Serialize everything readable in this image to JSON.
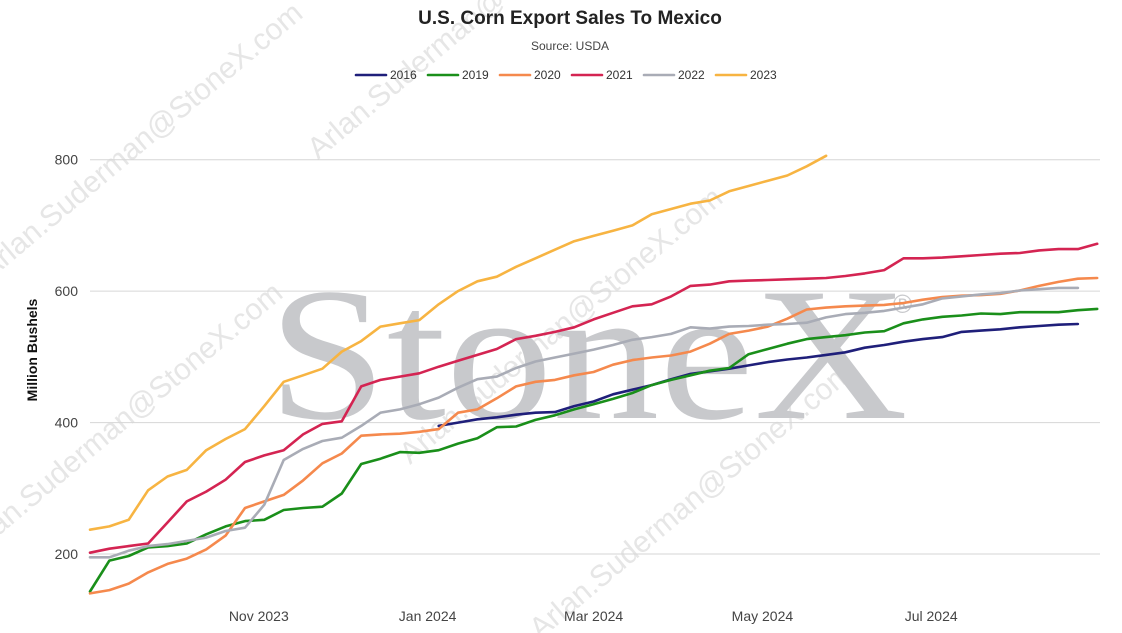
{
  "chart_data": {
    "type": "line",
    "title": "U.S. Corn Export Sales To Mexico",
    "subtitle": "Source: USDA",
    "ylabel": "Million Bushels",
    "xlabel": "",
    "ylim": [
      130,
      830
    ],
    "yticks": [
      200,
      400,
      600,
      800
    ],
    "xlim": [
      "2023-09-01",
      "2024-08-31"
    ],
    "xticks": [
      {
        "label": "Nov 2023",
        "date": "2023-11-01"
      },
      {
        "label": "Jan 2024",
        "date": "2024-01-01"
      },
      {
        "label": "Mar 2024",
        "date": "2024-03-01"
      },
      {
        "label": "May 2024",
        "date": "2024-05-01"
      },
      {
        "label": "Jul 2024",
        "date": "2024-07-01"
      }
    ],
    "grid": true,
    "legend_position": "top",
    "watermark": {
      "logo": "StoneX",
      "registered": "®",
      "text": "Arlan.Suderman@StoneX.com"
    },
    "series": [
      {
        "name": "2016",
        "color": "#1f1f7a",
        "x": [
          "2024-01-05",
          "2024-01-12",
          "2024-01-19",
          "2024-01-26",
          "2024-02-02",
          "2024-02-09",
          "2024-02-16",
          "2024-02-23",
          "2024-03-01",
          "2024-03-08",
          "2024-03-15",
          "2024-03-22",
          "2024-03-29",
          "2024-04-05",
          "2024-04-12",
          "2024-04-19",
          "2024-04-26",
          "2024-05-03",
          "2024-05-10",
          "2024-05-17",
          "2024-05-24",
          "2024-05-31",
          "2024-06-07",
          "2024-06-14",
          "2024-06-21",
          "2024-06-28",
          "2024-07-05",
          "2024-07-12",
          "2024-07-19",
          "2024-07-26",
          "2024-08-02",
          "2024-08-09",
          "2024-08-16",
          "2024-08-23"
        ],
        "y": [
          395,
          400,
          405,
          408,
          412,
          415,
          416,
          425,
          432,
          443,
          450,
          457,
          466,
          474,
          478,
          482,
          487,
          492,
          496,
          499,
          503,
          507,
          514,
          518,
          523,
          527,
          530,
          538,
          540,
          542,
          545,
          547,
          549,
          550
        ]
      },
      {
        "name": "2019",
        "color": "#1a8f1a",
        "x": [
          "2023-09-01",
          "2023-09-08",
          "2023-09-15",
          "2023-09-22",
          "2023-09-29",
          "2023-10-06",
          "2023-10-13",
          "2023-10-20",
          "2023-10-27",
          "2023-11-03",
          "2023-11-10",
          "2023-11-17",
          "2023-11-24",
          "2023-12-01",
          "2023-12-08",
          "2023-12-15",
          "2023-12-22",
          "2023-12-29",
          "2024-01-05",
          "2024-01-12",
          "2024-01-19",
          "2024-01-26",
          "2024-02-02",
          "2024-02-09",
          "2024-02-16",
          "2024-02-23",
          "2024-03-01",
          "2024-03-08",
          "2024-03-15",
          "2024-03-22",
          "2024-03-29",
          "2024-04-05",
          "2024-04-12",
          "2024-04-19",
          "2024-04-26",
          "2024-05-03",
          "2024-05-10",
          "2024-05-17",
          "2024-05-24",
          "2024-05-31",
          "2024-06-07",
          "2024-06-14",
          "2024-06-21",
          "2024-06-28",
          "2024-07-05",
          "2024-07-12",
          "2024-07-19",
          "2024-07-26",
          "2024-08-02",
          "2024-08-09",
          "2024-08-16",
          "2024-08-23",
          "2024-08-30"
        ],
        "y": [
          143,
          190,
          197,
          210,
          212,
          216,
          230,
          242,
          250,
          252,
          267,
          270,
          272,
          292,
          337,
          345,
          355,
          354,
          358,
          368,
          376,
          393,
          394,
          404,
          411,
          420,
          428,
          436,
          445,
          457,
          465,
          472,
          479,
          483,
          504,
          512,
          520,
          527,
          530,
          533,
          537,
          539,
          551,
          557,
          561,
          563,
          566,
          565,
          568,
          568,
          568,
          571,
          573
        ]
      },
      {
        "name": "2020",
        "color": "#f5894d",
        "x": [
          "2023-09-01",
          "2023-09-08",
          "2023-09-15",
          "2023-09-22",
          "2023-09-29",
          "2023-10-06",
          "2023-10-13",
          "2023-10-20",
          "2023-10-27",
          "2023-11-03",
          "2023-11-10",
          "2023-11-17",
          "2023-11-24",
          "2023-12-01",
          "2023-12-08",
          "2023-12-15",
          "2023-12-22",
          "2023-12-29",
          "2024-01-05",
          "2024-01-12",
          "2024-01-19",
          "2024-01-26",
          "2024-02-02",
          "2024-02-09",
          "2024-02-16",
          "2024-02-23",
          "2024-03-01",
          "2024-03-08",
          "2024-03-15",
          "2024-03-22",
          "2024-03-29",
          "2024-04-05",
          "2024-04-12",
          "2024-04-19",
          "2024-04-26",
          "2024-05-03",
          "2024-05-10",
          "2024-05-17",
          "2024-05-24",
          "2024-05-31",
          "2024-06-07",
          "2024-06-14",
          "2024-06-21",
          "2024-06-28",
          "2024-07-05",
          "2024-07-12",
          "2024-07-19",
          "2024-07-26",
          "2024-08-02",
          "2024-08-09",
          "2024-08-16",
          "2024-08-23",
          "2024-08-30"
        ],
        "y": [
          140,
          145,
          155,
          172,
          185,
          193,
          207,
          228,
          270,
          280,
          290,
          312,
          338,
          353,
          380,
          382,
          383,
          386,
          390,
          415,
          420,
          437,
          455,
          462,
          465,
          472,
          477,
          488,
          495,
          499,
          502,
          508,
          520,
          535,
          540,
          546,
          558,
          572,
          575,
          577,
          578,
          579,
          582,
          587,
          591,
          593,
          594,
          596,
          601,
          608,
          614,
          619,
          620
        ]
      },
      {
        "name": "2021",
        "color": "#d42452",
        "x": [
          "2023-09-01",
          "2023-09-08",
          "2023-09-15",
          "2023-09-22",
          "2023-09-29",
          "2023-10-06",
          "2023-10-13",
          "2023-10-20",
          "2023-10-27",
          "2023-11-03",
          "2023-11-10",
          "2023-11-17",
          "2023-11-24",
          "2023-12-01",
          "2023-12-08",
          "2023-12-15",
          "2023-12-22",
          "2023-12-29",
          "2024-01-05",
          "2024-01-12",
          "2024-01-19",
          "2024-01-26",
          "2024-02-02",
          "2024-02-09",
          "2024-02-16",
          "2024-02-23",
          "2024-03-01",
          "2024-03-08",
          "2024-03-15",
          "2024-03-22",
          "2024-03-29",
          "2024-04-05",
          "2024-04-12",
          "2024-04-19",
          "2024-04-26",
          "2024-05-03",
          "2024-05-10",
          "2024-05-17",
          "2024-05-24",
          "2024-05-31",
          "2024-06-07",
          "2024-06-14",
          "2024-06-21",
          "2024-06-28",
          "2024-07-05",
          "2024-07-12",
          "2024-07-19",
          "2024-07-26",
          "2024-08-02",
          "2024-08-09",
          "2024-08-16",
          "2024-08-23",
          "2024-08-30"
        ],
        "y": [
          202,
          208,
          212,
          216,
          248,
          280,
          295,
          313,
          340,
          350,
          358,
          382,
          398,
          402,
          455,
          465,
          470,
          475,
          485,
          494,
          503,
          512,
          527,
          532,
          538,
          545,
          557,
          567,
          577,
          580,
          592,
          608,
          610,
          615,
          616,
          617,
          618,
          619,
          620,
          623,
          627,
          632,
          650,
          650,
          651,
          653,
          655,
          657,
          658,
          662,
          664,
          664,
          672
        ]
      },
      {
        "name": "2022",
        "color": "#a9acb6",
        "x": [
          "2023-09-01",
          "2023-09-08",
          "2023-09-15",
          "2023-09-22",
          "2023-09-29",
          "2023-10-06",
          "2023-10-13",
          "2023-10-20",
          "2023-10-27",
          "2023-11-03",
          "2023-11-10",
          "2023-11-17",
          "2023-11-24",
          "2023-12-01",
          "2023-12-08",
          "2023-12-15",
          "2023-12-22",
          "2023-12-29",
          "2024-01-05",
          "2024-01-12",
          "2024-01-19",
          "2024-01-26",
          "2024-02-02",
          "2024-02-09",
          "2024-02-16",
          "2024-02-23",
          "2024-03-01",
          "2024-03-08",
          "2024-03-15",
          "2024-03-22",
          "2024-03-29",
          "2024-04-05",
          "2024-04-12",
          "2024-04-19",
          "2024-04-26",
          "2024-05-03",
          "2024-05-10",
          "2024-05-17",
          "2024-05-24",
          "2024-05-31",
          "2024-06-07",
          "2024-06-14",
          "2024-06-21",
          "2024-06-28",
          "2024-07-05",
          "2024-07-12",
          "2024-07-19",
          "2024-07-26",
          "2024-08-02",
          "2024-08-09",
          "2024-08-16",
          "2024-08-23"
        ],
        "y": [
          195,
          195,
          205,
          212,
          215,
          220,
          225,
          235,
          240,
          275,
          343,
          360,
          372,
          377,
          395,
          415,
          420,
          428,
          438,
          453,
          466,
          470,
          483,
          493,
          499,
          505,
          511,
          518,
          526,
          530,
          535,
          545,
          543,
          546,
          547,
          549,
          550,
          552,
          560,
          565,
          567,
          570,
          575,
          580,
          589,
          592,
          595,
          597,
          601,
          603,
          605,
          605
        ]
      },
      {
        "name": "2023",
        "color": "#f7b442",
        "x": [
          "2023-09-01",
          "2023-09-08",
          "2023-09-15",
          "2023-09-22",
          "2023-09-29",
          "2023-10-06",
          "2023-10-13",
          "2023-10-20",
          "2023-10-27",
          "2023-11-03",
          "2023-11-10",
          "2023-11-17",
          "2023-11-24",
          "2023-12-01",
          "2023-12-08",
          "2023-12-15",
          "2023-12-22",
          "2023-12-29",
          "2024-01-05",
          "2024-01-12",
          "2024-01-19",
          "2024-01-26",
          "2024-02-02",
          "2024-02-09",
          "2024-02-16",
          "2024-02-23",
          "2024-03-01",
          "2024-03-08",
          "2024-03-15",
          "2024-03-22",
          "2024-03-29",
          "2024-04-05",
          "2024-04-12",
          "2024-04-19",
          "2024-04-26",
          "2024-05-03",
          "2024-05-10",
          "2024-05-17",
          "2024-05-24"
        ],
        "y": [
          237,
          242,
          252,
          297,
          318,
          328,
          358,
          375,
          390,
          425,
          462,
          472,
          482,
          508,
          524,
          546,
          551,
          556,
          580,
          600,
          615,
          622,
          637,
          650,
          663,
          676,
          684,
          692,
          700,
          717,
          725,
          733,
          738,
          752,
          760,
          768,
          776,
          790,
          806
        ]
      }
    ]
  }
}
